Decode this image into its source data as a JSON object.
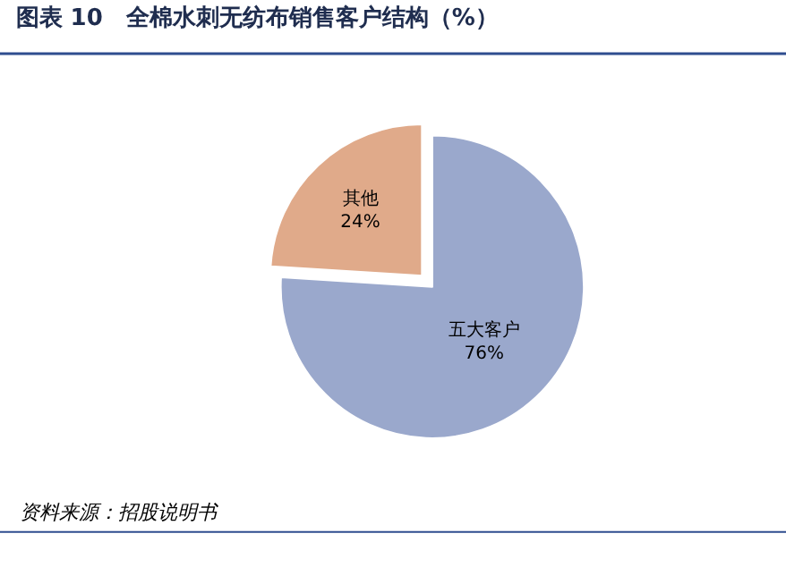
{
  "chart_data": {
    "type": "pie",
    "title": "图表 10　全棉水刺无纺布销售客户结构（%）",
    "categories": [
      "五大客户",
      "其他"
    ],
    "values": [
      76,
      24
    ],
    "colors": [
      "#9aa8cc",
      "#e0aa8a"
    ],
    "value_labels": [
      "76%",
      "24%"
    ],
    "annotations": [
      "资料来源：招股说明书"
    ],
    "legend": false
  }
}
